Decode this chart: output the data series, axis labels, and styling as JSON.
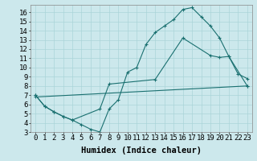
{
  "xlabel": "Humidex (Indice chaleur)",
  "xlim": [
    -0.5,
    23.5
  ],
  "ylim": [
    3,
    16.8
  ],
  "xticks": [
    0,
    1,
    2,
    3,
    4,
    5,
    6,
    7,
    8,
    9,
    10,
    11,
    12,
    13,
    14,
    15,
    16,
    17,
    18,
    19,
    20,
    21,
    22,
    23
  ],
  "yticks": [
    3,
    4,
    5,
    6,
    7,
    8,
    9,
    10,
    11,
    12,
    13,
    14,
    15,
    16
  ],
  "bg_color": "#cce8ec",
  "grid_color": "#aad4d8",
  "line_color": "#1a7070",
  "line1_x": [
    0,
    1,
    2,
    3,
    4,
    5,
    6,
    7,
    8,
    9,
    10,
    11,
    12,
    13,
    14,
    15,
    16,
    17,
    18,
    19,
    20,
    21,
    22,
    23
  ],
  "line1_y": [
    7.0,
    5.8,
    5.2,
    4.7,
    4.3,
    3.8,
    3.3,
    3.0,
    5.5,
    6.5,
    9.5,
    10.0,
    12.5,
    13.8,
    14.5,
    15.2,
    16.3,
    16.5,
    15.5,
    14.5,
    13.2,
    11.2,
    9.3,
    8.8
  ],
  "line2_x": [
    0,
    1,
    2,
    3,
    4,
    7,
    8,
    13,
    16,
    19,
    20,
    21,
    23
  ],
  "line2_y": [
    7.0,
    5.8,
    5.2,
    4.7,
    4.3,
    5.5,
    8.2,
    8.7,
    13.2,
    11.3,
    11.1,
    11.2,
    8.0
  ],
  "line3_x": [
    0,
    23
  ],
  "line3_y": [
    6.8,
    8.0
  ],
  "tick_fontsize": 6.5,
  "label_fontsize": 7.5
}
